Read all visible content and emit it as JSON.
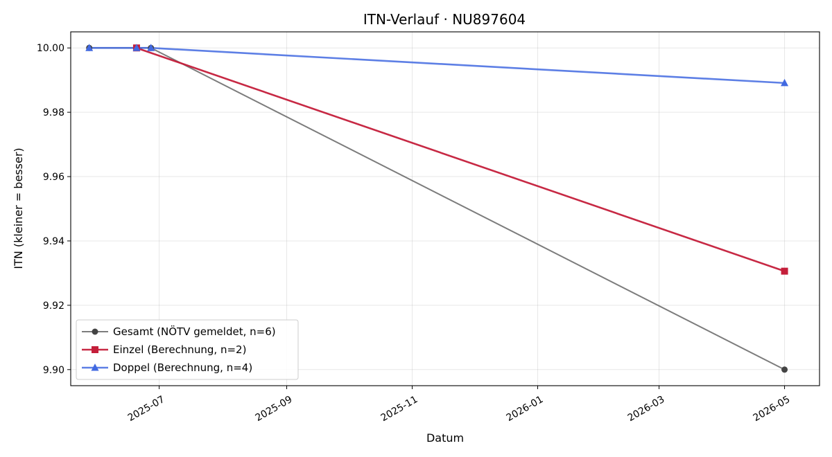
{
  "chart_data": {
    "type": "line",
    "title": "ITN-Verlauf · NU897604",
    "xlabel": "Datum",
    "ylabel": "ITN  (kleiner = besser)",
    "x_axis": "date",
    "xlim": [
      "2025-05-19",
      "2026-05-18"
    ],
    "ylim": [
      9.895,
      10.005
    ],
    "x_ticks": [
      "2025-07",
      "2025-09",
      "2025-11",
      "2026-01",
      "2026-03",
      "2026-05"
    ],
    "x_tick_dates": [
      "2025-07-01",
      "2025-09-01",
      "2025-11-01",
      "2026-01-01",
      "2026-03-01",
      "2026-05-01"
    ],
    "y_ticks": [
      "9.90",
      "9.92",
      "9.94",
      "9.96",
      "9.98",
      "10.00"
    ],
    "y_tick_values": [
      9.9,
      9.92,
      9.94,
      9.96,
      9.98,
      10.0
    ],
    "grid": true,
    "legend_position": "bottom-left",
    "series": [
      {
        "name": "Gesamt (NÖTV gemeldet, n=6)",
        "color": "#444444",
        "line_opacity": 0.7,
        "marker": "circle",
        "x": [
          "2025-05-28",
          "2025-06-20",
          "2025-06-27",
          "2026-05-01"
        ],
        "y": [
          10.0,
          10.0,
          10.0,
          9.9
        ]
      },
      {
        "name": "Einzel (Berechnung, n=2)",
        "color": "#c41e3a",
        "line_opacity": 0.95,
        "marker": "square",
        "x": [
          "2025-06-20",
          "2026-05-01"
        ],
        "y": [
          10.0,
          9.9306
        ]
      },
      {
        "name": "Doppel (Berechnung, n=4)",
        "color": "#4169e1",
        "line_opacity": 0.85,
        "marker": "triangle",
        "x": [
          "2025-05-28",
          "2025-06-20",
          "2025-06-27",
          "2026-05-01"
        ],
        "y": [
          10.0,
          10.0,
          10.0,
          9.9891
        ]
      }
    ]
  }
}
